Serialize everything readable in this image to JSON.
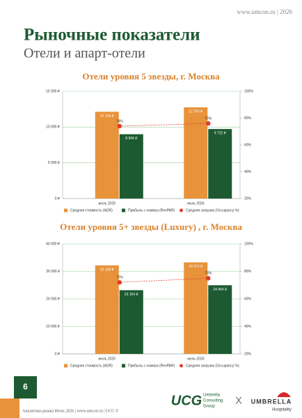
{
  "header": {
    "site": "www.umcon.ru | 2026",
    "title": "Рыночные показатели",
    "subtitle": "Отели и апарт-отели"
  },
  "chart_data": [
    {
      "type": "bar",
      "title": "Отели уровня 5 звезды, г. Москва",
      "categories": [
        "июль 2025",
        "июль 2026"
      ],
      "ylim": [
        0,
        15000
      ],
      "yticks": [
        {
          "value": 0,
          "label": "0 ₽"
        },
        {
          "value": 5000,
          "label": "5 000 ₽"
        },
        {
          "value": 10000,
          "label": "10 000 ₽"
        },
        {
          "value": 15000,
          "label": "15 000 ₽"
        }
      ],
      "y2lim": [
        20,
        100
      ],
      "y2ticks": [
        {
          "value": 20,
          "label": "20%"
        },
        {
          "value": 40,
          "label": "40%"
        },
        {
          "value": 60,
          "label": "60%"
        },
        {
          "value": 80,
          "label": "80%"
        },
        {
          "value": 100,
          "label": "100%"
        }
      ],
      "grid": true,
      "series": [
        {
          "name": "Средняя стоимость (ADR)",
          "color": "#e8923a",
          "values": [
            12134,
            12750
          ],
          "value_labels": [
            "12 134 ₽",
            "12 750 ₽"
          ]
        },
        {
          "name": "Прибыль с номера (RevPAR)",
          "color": "#1d5a32",
          "values": [
            8994,
            9722
          ],
          "value_labels": [
            "8 994 ₽",
            "9 722 ₽"
          ]
        },
        {
          "name": "Средняя загрузка (Occupancy %)",
          "color": "#e23a2a",
          "type": "line",
          "axis": "y2",
          "values": [
            74,
            76
          ],
          "value_labels": [
            "74%",
            "76%"
          ]
        }
      ]
    },
    {
      "type": "bar",
      "title": "Отели уровня 5+ звезды (Luxury) , г. Москва",
      "categories": [
        "июль 2025",
        "июль 2026"
      ],
      "ylim": [
        0,
        40000
      ],
      "yticks": [
        {
          "value": 0,
          "label": "0 ₽"
        },
        {
          "value": 10000,
          "label": "10 000 ₽"
        },
        {
          "value": 20000,
          "label": "20 000 ₽"
        },
        {
          "value": 30000,
          "label": "30 000 ₽"
        },
        {
          "value": 40000,
          "label": "40 000 ₽"
        }
      ],
      "y2lim": [
        20,
        100
      ],
      "y2ticks": [
        {
          "value": 20,
          "label": "20%"
        },
        {
          "value": 40,
          "label": "40%"
        },
        {
          "value": 60,
          "label": "60%"
        },
        {
          "value": 80,
          "label": "80%"
        },
        {
          "value": 100,
          "label": "100%"
        }
      ],
      "grid": true,
      "series": [
        {
          "name": "Средняя стоимость (ADR)",
          "color": "#e8923a",
          "values": [
            32158,
            33272
          ],
          "value_labels": [
            "32 158 ₽",
            "33 272 ₽"
          ]
        },
        {
          "name": "Прибыль с номера (RevPAR)",
          "color": "#1d5a32",
          "values": [
            23154,
            24954
          ],
          "value_labels": [
            "23 154 ₽",
            "24 954 ₽"
          ]
        },
        {
          "name": "Средняя загрузка (Occupancy %)",
          "color": "#e23a2a",
          "type": "line",
          "axis": "y2",
          "values": [
            72,
            75
          ],
          "value_labels": [
            "72%",
            "75%"
          ]
        }
      ]
    }
  ],
  "footer": {
    "page": "6",
    "text": "Аналитика рынка Июль 2026 | www.umcon.ru | UCG ©",
    "ucg": "UCG",
    "ucg_name": [
      "Umbrella",
      "Consulting",
      "Group"
    ],
    "x": "X",
    "umbrella": "UMBRELLA",
    "hospitality": "Hospitality"
  }
}
